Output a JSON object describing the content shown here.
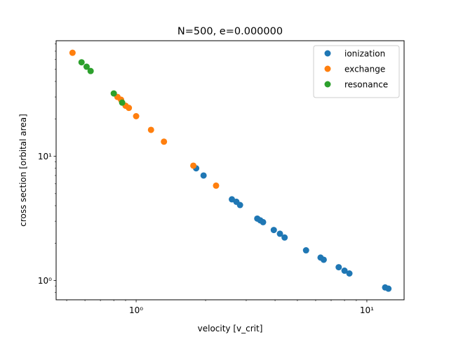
{
  "chart_data": {
    "type": "scatter",
    "title": "N=500, e=0.000000",
    "xlabel": "velocity [v_crit]",
    "ylabel": "cross section [orbital area]",
    "xscale": "log",
    "yscale": "log",
    "xlim": [
      0.45,
      14.5
    ],
    "ylim": [
      0.7,
      85
    ],
    "grid": false,
    "legend_position": "top-right",
    "x_major_ticks": [
      {
        "value": 1,
        "label": "10⁰"
      },
      {
        "value": 10,
        "label": "10¹"
      }
    ],
    "y_major_ticks": [
      {
        "value": 1,
        "label": "10⁰"
      },
      {
        "value": 10,
        "label": "10¹"
      }
    ],
    "x_minor_ticks": [
      0.5,
      0.6,
      0.7,
      0.8,
      0.9,
      2,
      3,
      4,
      5,
      6,
      7,
      8,
      9
    ],
    "y_minor_ticks": [
      0.8,
      0.9,
      2,
      3,
      4,
      5,
      6,
      7,
      8,
      9,
      20,
      30,
      40,
      50,
      60,
      70,
      80
    ],
    "series": [
      {
        "name": "ionization",
        "color": "#1f77b4",
        "points": [
          [
            1.82,
            8.0
          ],
          [
            1.96,
            7.0
          ],
          [
            2.6,
            4.5
          ],
          [
            2.72,
            4.3
          ],
          [
            2.82,
            4.05
          ],
          [
            3.35,
            3.15
          ],
          [
            3.45,
            3.05
          ],
          [
            3.55,
            2.95
          ],
          [
            3.95,
            2.55
          ],
          [
            4.2,
            2.38
          ],
          [
            4.4,
            2.22
          ],
          [
            5.45,
            1.75
          ],
          [
            6.3,
            1.53
          ],
          [
            6.5,
            1.47
          ],
          [
            7.55,
            1.28
          ],
          [
            8.0,
            1.2
          ],
          [
            8.4,
            1.14
          ],
          [
            12.0,
            0.88
          ],
          [
            12.4,
            0.86
          ]
        ]
      },
      {
        "name": "exchange",
        "color": "#ff7f0e",
        "points": [
          [
            0.53,
            68.0
          ],
          [
            0.83,
            30.0
          ],
          [
            0.86,
            28.5
          ],
          [
            0.9,
            25.5
          ],
          [
            0.93,
            24.5
          ],
          [
            1.0,
            21.0
          ],
          [
            1.16,
            16.3
          ],
          [
            1.32,
            13.1
          ],
          [
            1.77,
            8.4
          ],
          [
            2.22,
            5.8
          ]
        ]
      },
      {
        "name": "resonance",
        "color": "#2ca02c",
        "points": [
          [
            0.58,
            57.0
          ],
          [
            0.61,
            52.5
          ],
          [
            0.635,
            48.5
          ],
          [
            0.8,
            32.0
          ],
          [
            0.87,
            27.0
          ]
        ]
      }
    ]
  }
}
